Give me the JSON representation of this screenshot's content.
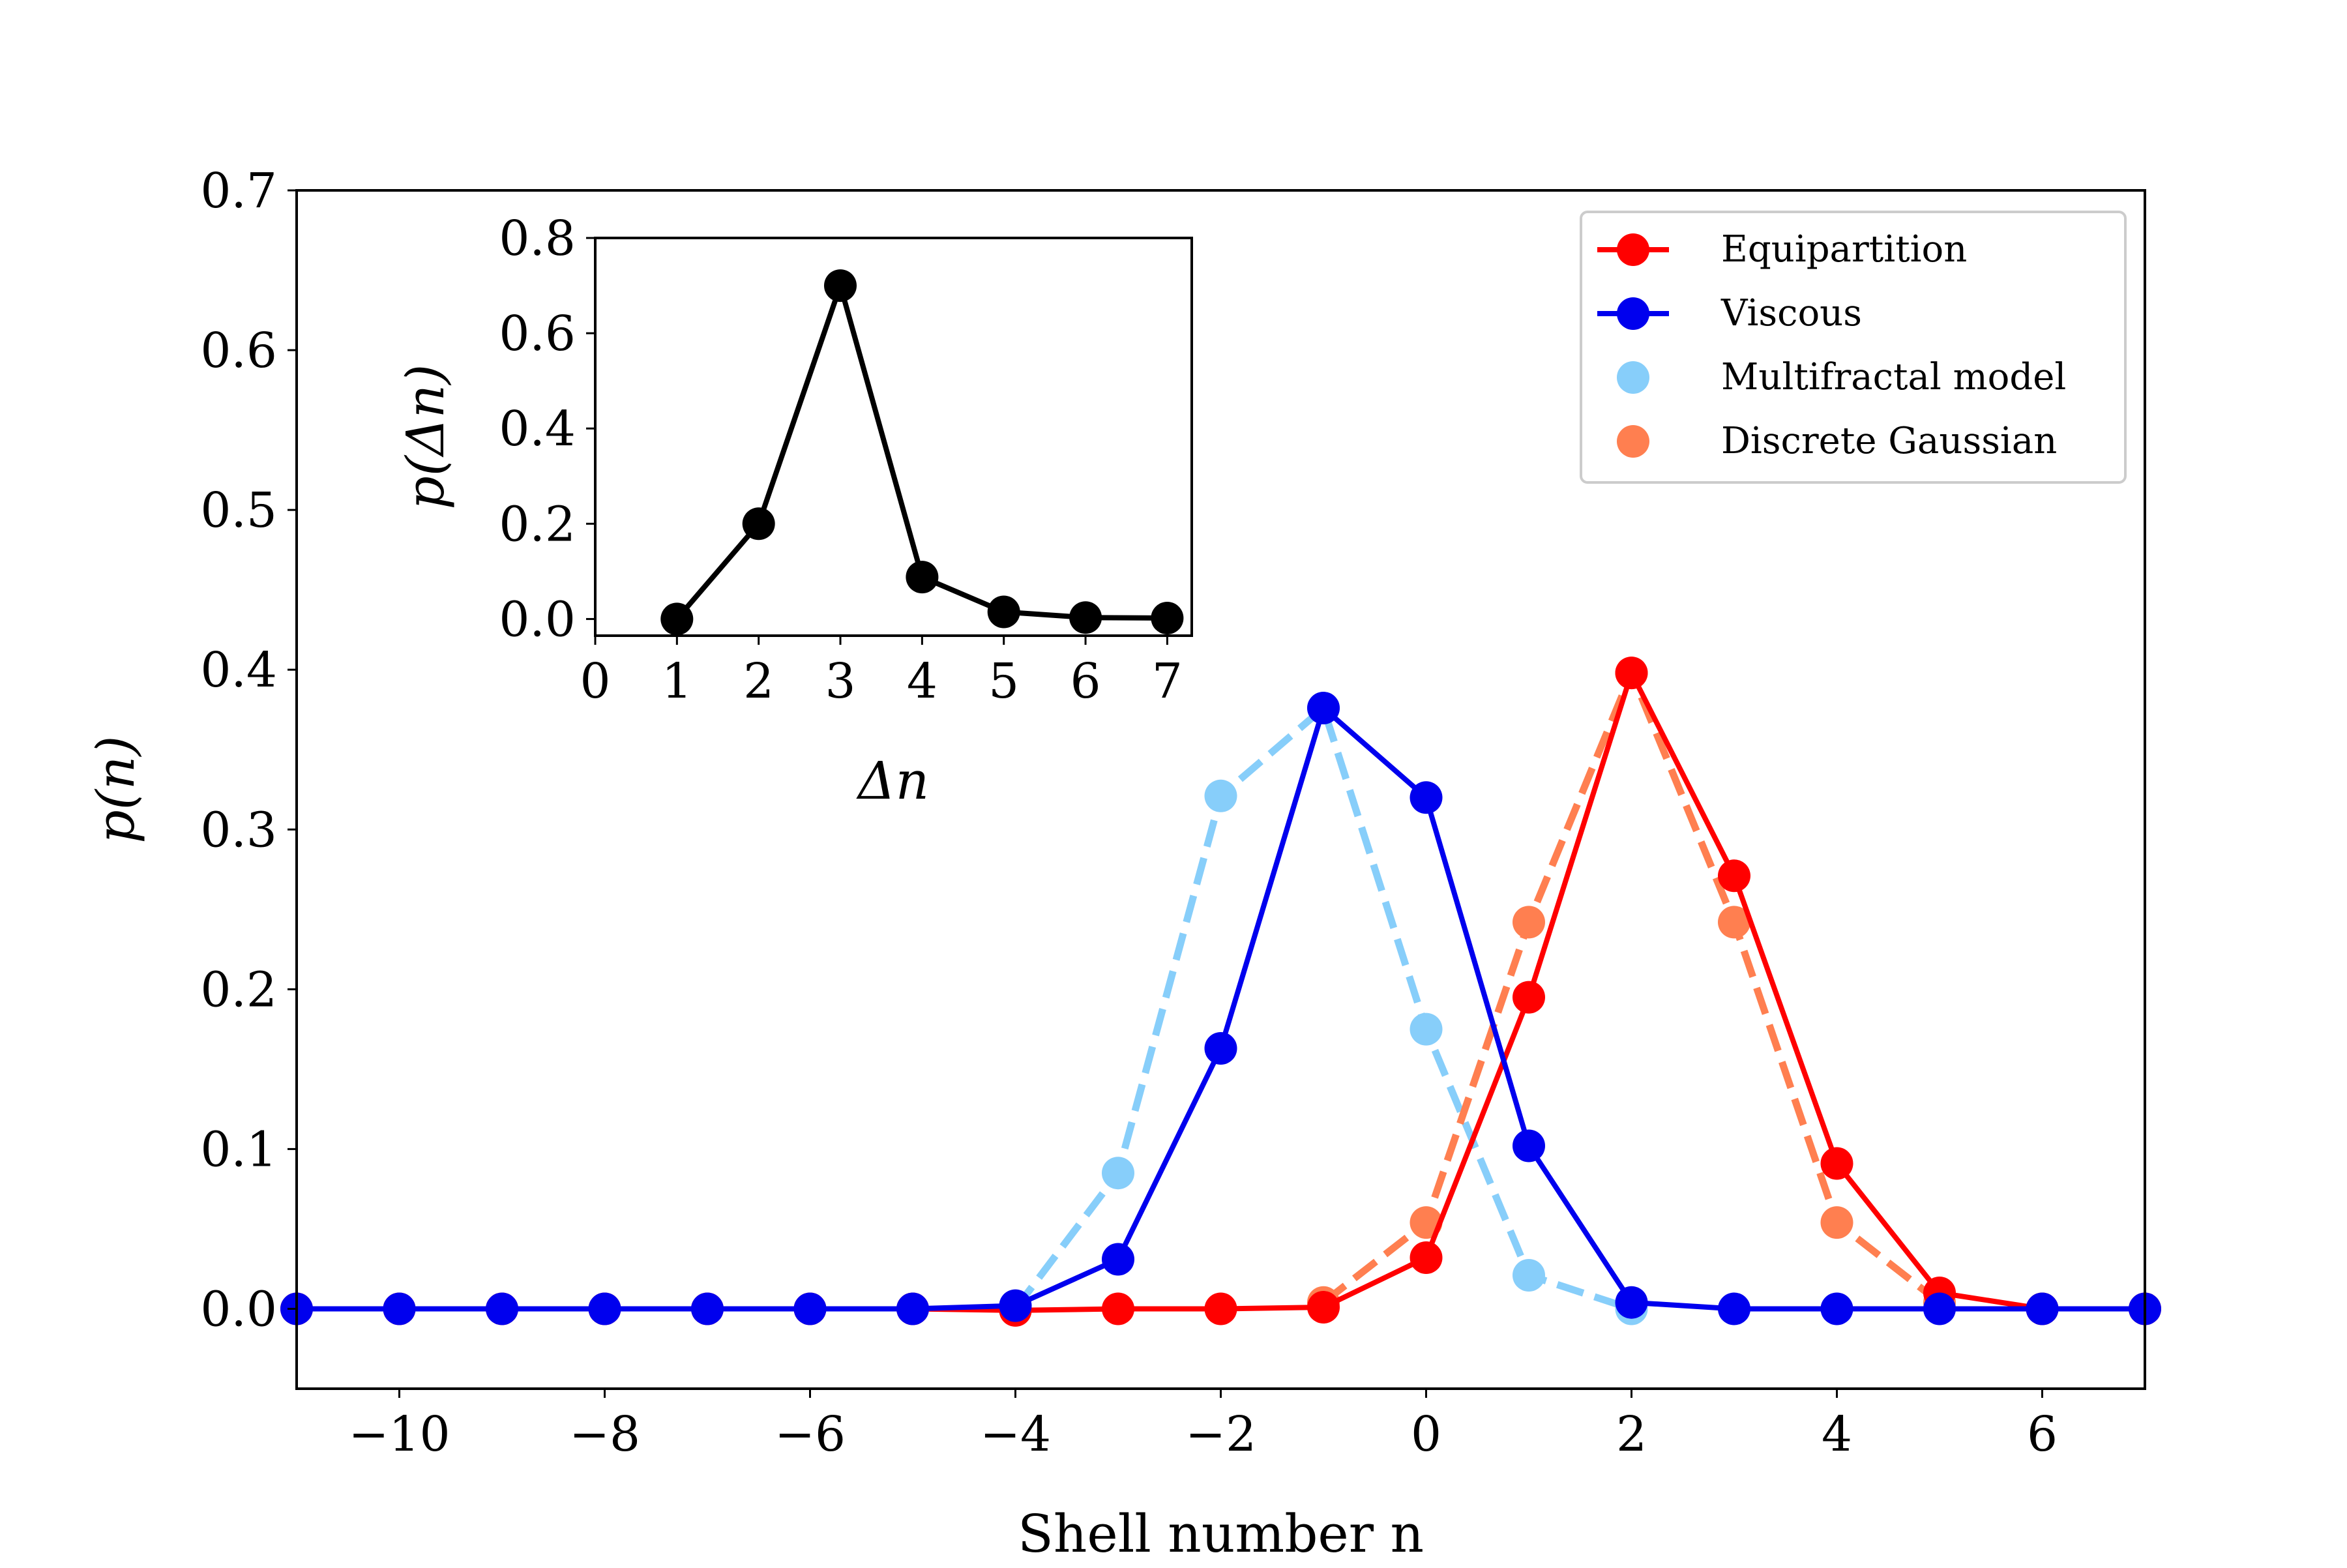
{
  "chart_data": [
    {
      "type": "line",
      "role": "main",
      "xlabel": "Shell number n",
      "ylabel": "p(n)",
      "xlim": [
        -11,
        7
      ],
      "ylim": [
        -0.05,
        0.7
      ],
      "xticks": [
        -10,
        -8,
        -6,
        -4,
        -2,
        0,
        2,
        4,
        6
      ],
      "xtick_labels": [
        "−10",
        "−8",
        "−6",
        "−4",
        "−2",
        "0",
        "2",
        "4",
        "6"
      ],
      "yticks": [
        0.0,
        0.1,
        0.2,
        0.3,
        0.4,
        0.5,
        0.6,
        0.7
      ],
      "ytick_labels": [
        "0.0",
        "0.1",
        "0.2",
        "0.3",
        "0.4",
        "0.5",
        "0.6",
        "0.7"
      ],
      "legend_position": "top-right",
      "series": [
        {
          "name": "Equipartition",
          "color": "#ff0000",
          "style": "solid-line-markers",
          "x": [
            -11,
            -10,
            -9,
            -8,
            -7,
            -6,
            -5,
            -4,
            -3,
            -2,
            -1,
            0,
            1,
            2,
            3,
            4,
            5,
            6,
            7
          ],
          "values": [
            0.0,
            0.0,
            0.0,
            0.0,
            0.0,
            0.0,
            0.0,
            -0.001,
            0.0,
            0.0,
            0.001,
            0.032,
            0.195,
            0.398,
            0.271,
            0.091,
            0.01,
            0.0,
            0.0
          ]
        },
        {
          "name": "Viscous",
          "color": "#0000ee",
          "style": "solid-line-markers",
          "x": [
            -11,
            -10,
            -9,
            -8,
            -7,
            -6,
            -5,
            -4,
            -3,
            -2,
            -1,
            0,
            1,
            2,
            3,
            4,
            5,
            6,
            7
          ],
          "values": [
            0.0,
            0.0,
            0.0,
            0.0,
            0.0,
            0.0,
            0.0,
            0.002,
            0.031,
            0.163,
            0.376,
            0.32,
            0.102,
            0.004,
            0.0,
            0.0,
            0.0,
            0.0,
            0.0
          ]
        },
        {
          "name": "Multifractal model",
          "color": "#87cefa",
          "style": "dashed-line-markers",
          "x": [
            -4,
            -3,
            -2,
            -1,
            0,
            1,
            2
          ],
          "values": [
            0.0,
            0.085,
            0.321,
            0.376,
            0.175,
            0.021,
            0.0
          ]
        },
        {
          "name": "Discrete Gaussian",
          "color": "#ff7f50",
          "style": "dashed-line-markers",
          "x": [
            -1,
            0,
            1,
            2,
            3,
            4,
            5
          ],
          "values": [
            0.004,
            0.054,
            0.242,
            0.398,
            0.242,
            0.054,
            0.004
          ]
        }
      ]
    },
    {
      "type": "line",
      "role": "inset",
      "xlabel": "Δn",
      "ylabel": "p(Δn)",
      "xlim": [
        0,
        7.3
      ],
      "ylim": [
        -0.035,
        0.8
      ],
      "xticks": [
        0,
        1,
        2,
        3,
        4,
        5,
        6,
        7
      ],
      "xtick_labels": [
        "0",
        "1",
        "2",
        "3",
        "4",
        "5",
        "6",
        "7"
      ],
      "yticks": [
        0.0,
        0.2,
        0.4,
        0.6,
        0.8
      ],
      "ytick_labels": [
        "0.0",
        "0.2",
        "0.4",
        "0.6",
        "0.8"
      ],
      "series": [
        {
          "name": "p(Δn)",
          "color": "#000000",
          "style": "solid-line-markers",
          "x": [
            1,
            2,
            3,
            4,
            5,
            6,
            7
          ],
          "values": [
            0.0,
            0.2,
            0.7,
            0.088,
            0.015,
            0.003,
            0.002
          ]
        }
      ]
    }
  ]
}
